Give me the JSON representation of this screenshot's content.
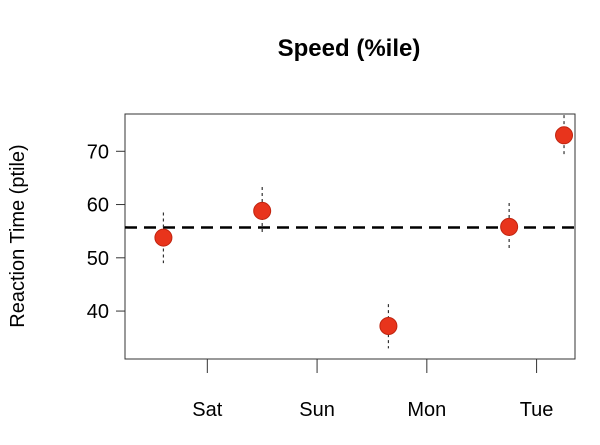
{
  "chart_data": {
    "type": "scatter",
    "title": "Speed (%ile)",
    "xlabel": "",
    "ylabel": "Reaction Time (ptile)",
    "x_ticks": [
      {
        "label": "Sat",
        "x": 1
      },
      {
        "label": "Sun",
        "x": 2
      },
      {
        "label": "Mon",
        "x": 3
      },
      {
        "label": "Tue",
        "x": 4
      }
    ],
    "y_ticks": [
      40,
      50,
      60,
      70
    ],
    "xlim": [
      0.25,
      4.35
    ],
    "ylim": [
      31,
      77
    ],
    "reference_line": 55.7,
    "points": [
      {
        "x": 0.6,
        "y": 53.8,
        "low": 49,
        "high": 58.5
      },
      {
        "x": 1.5,
        "y": 58.8,
        "low": 54.3,
        "high": 63.3
      },
      {
        "x": 2.65,
        "y": 37.2,
        "low": 33,
        "high": 41.3
      },
      {
        "x": 3.75,
        "y": 55.8,
        "low": 51.3,
        "high": 60.3
      },
      {
        "x": 4.25,
        "y": 73.0,
        "low": 69,
        "high": 76.8
      }
    ],
    "grid": false,
    "colors": {
      "marker_fill": "#e8341c",
      "marker_stroke": "#c0240f",
      "reference_line": "#000000",
      "axis": "#333333"
    }
  }
}
